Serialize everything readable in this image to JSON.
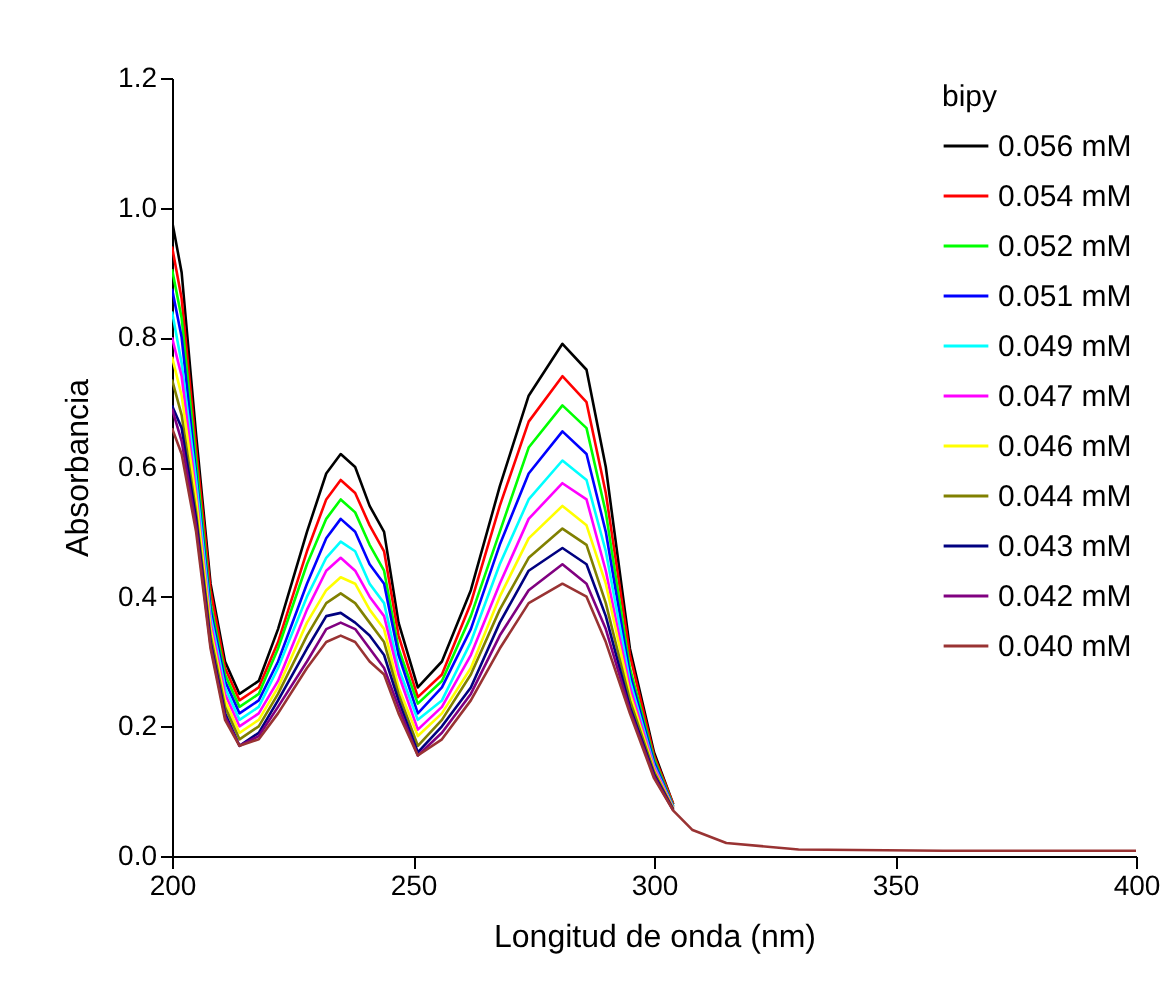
{
  "chart_data": {
    "type": "line",
    "xlabel": "Longitud de onda (nm)",
    "ylabel": "Absorbancia",
    "legend_title": "bipy",
    "legend": "top right",
    "grid": false,
    "marker": "none",
    "line_style": "solid",
    "xlim": [
      200,
      400
    ],
    "xticks": [
      200,
      250,
      300,
      350,
      400
    ],
    "ylim": [
      0,
      1.2
    ],
    "yticks": [
      {
        "value": 0,
        "label": "0.0"
      },
      {
        "value": 0.2,
        "label": "0.2"
      },
      {
        "value": 0.4,
        "label": "0.4"
      },
      {
        "value": 0.6,
        "label": "0.6"
      },
      {
        "value": 0.8,
        "label": "0.8"
      },
      {
        "value": 1,
        "label": "1.0"
      },
      {
        "value": 1.2,
        "label": "1.2"
      }
    ],
    "x": [
      200,
      202,
      205,
      208,
      211,
      214,
      218,
      222,
      228,
      232,
      235,
      238,
      241,
      244,
      247,
      251,
      256,
      262,
      268,
      274,
      281,
      286,
      290,
      295,
      300,
      304,
      308,
      315,
      330,
      360,
      400
    ],
    "series": [
      {
        "name": "0.056 mM",
        "color": "#000000",
        "values": [
          0.98,
          0.9,
          0.65,
          0.42,
          0.3,
          0.25,
          0.27,
          0.35,
          0.5,
          0.59,
          0.62,
          0.6,
          0.54,
          0.5,
          0.36,
          0.26,
          0.3,
          0.41,
          0.57,
          0.71,
          0.79,
          0.75,
          0.6,
          0.32,
          0.16,
          0.08,
          null,
          null,
          null,
          null,
          null
        ]
      },
      {
        "name": "0.054 mM",
        "color": "#ff0000",
        "values": [
          0.94,
          0.86,
          0.63,
          0.41,
          0.29,
          0.24,
          0.26,
          0.33,
          0.47,
          0.55,
          0.58,
          0.56,
          0.51,
          0.47,
          0.34,
          0.245,
          0.28,
          0.39,
          0.54,
          0.67,
          0.74,
          0.7,
          0.56,
          0.31,
          0.155,
          0.08,
          null,
          null,
          null,
          null,
          null
        ]
      },
      {
        "name": "0.052 mM",
        "color": "#00ff00",
        "values": [
          0.905,
          0.83,
          0.61,
          0.39,
          0.28,
          0.23,
          0.25,
          0.32,
          0.45,
          0.52,
          0.55,
          0.53,
          0.48,
          0.44,
          0.32,
          0.235,
          0.27,
          0.37,
          0.5,
          0.63,
          0.695,
          0.66,
          0.53,
          0.29,
          0.15,
          0.077,
          null,
          null,
          null,
          null,
          null
        ]
      },
      {
        "name": "0.051 mM",
        "color": "#0000ff",
        "values": [
          0.875,
          0.8,
          0.59,
          0.38,
          0.27,
          0.22,
          0.24,
          0.3,
          0.42,
          0.49,
          0.52,
          0.5,
          0.45,
          0.42,
          0.31,
          0.22,
          0.26,
          0.35,
          0.48,
          0.59,
          0.655,
          0.62,
          0.5,
          0.28,
          0.145,
          0.076,
          null,
          null,
          null,
          null,
          null
        ]
      },
      {
        "name": "0.049 mM",
        "color": "#00ffff",
        "values": [
          0.84,
          0.76,
          0.58,
          0.37,
          0.26,
          0.21,
          0.23,
          0.29,
          0.4,
          0.46,
          0.485,
          0.47,
          0.42,
          0.39,
          0.29,
          0.21,
          0.24,
          0.33,
          0.45,
          0.55,
          0.61,
          0.58,
          0.47,
          0.27,
          0.14,
          0.075,
          null,
          null,
          null,
          null,
          null
        ]
      },
      {
        "name": "0.047 mM",
        "color": "#ff00ff",
        "values": [
          0.8,
          0.74,
          0.56,
          0.36,
          0.25,
          0.2,
          0.22,
          0.27,
          0.38,
          0.44,
          0.46,
          0.44,
          0.4,
          0.37,
          0.28,
          0.195,
          0.23,
          0.31,
          0.42,
          0.52,
          0.575,
          0.55,
          0.44,
          0.26,
          0.137,
          0.074,
          null,
          null,
          null,
          null,
          null
        ]
      },
      {
        "name": "0.046 mM",
        "color": "#ffff00",
        "values": [
          0.77,
          0.71,
          0.55,
          0.35,
          0.24,
          0.19,
          0.21,
          0.26,
          0.36,
          0.41,
          0.43,
          0.42,
          0.38,
          0.35,
          0.26,
          0.185,
          0.22,
          0.29,
          0.4,
          0.49,
          0.54,
          0.51,
          0.42,
          0.25,
          0.133,
          0.073,
          null,
          null,
          null,
          null,
          null
        ]
      },
      {
        "name": "0.044 mM",
        "color": "#808000",
        "values": [
          0.735,
          0.68,
          0.53,
          0.34,
          0.23,
          0.18,
          0.2,
          0.25,
          0.34,
          0.39,
          0.405,
          0.39,
          0.36,
          0.33,
          0.25,
          0.17,
          0.21,
          0.28,
          0.38,
          0.46,
          0.505,
          0.48,
          0.39,
          0.24,
          0.13,
          0.072,
          null,
          null,
          null,
          null,
          null
        ]
      },
      {
        "name": "0.043 mM",
        "color": "#000080",
        "values": [
          0.695,
          0.66,
          0.52,
          0.33,
          0.22,
          0.17,
          0.19,
          0.24,
          0.32,
          0.37,
          0.375,
          0.36,
          0.34,
          0.31,
          0.24,
          0.16,
          0.2,
          0.26,
          0.36,
          0.44,
          0.475,
          0.45,
          0.37,
          0.23,
          0.126,
          0.071,
          null,
          null,
          null,
          null,
          null
        ]
      },
      {
        "name": "0.042 mM",
        "color": "#800080",
        "values": [
          0.69,
          0.64,
          0.51,
          0.325,
          0.215,
          0.17,
          0.185,
          0.23,
          0.3,
          0.35,
          0.36,
          0.35,
          0.32,
          0.29,
          0.23,
          0.155,
          0.19,
          0.25,
          0.34,
          0.41,
          0.45,
          0.42,
          0.35,
          0.225,
          0.123,
          0.07,
          null,
          null,
          null,
          null,
          null
        ]
      },
      {
        "name": "0.040 mM",
        "color": "#993333",
        "values": [
          0.66,
          0.62,
          0.5,
          0.32,
          0.21,
          0.17,
          0.18,
          0.22,
          0.29,
          0.33,
          0.34,
          0.33,
          0.3,
          0.28,
          0.22,
          0.155,
          0.18,
          0.24,
          0.32,
          0.39,
          0.42,
          0.4,
          0.33,
          0.22,
          0.12,
          0.07,
          0.04,
          0.02,
          0.01,
          0.008,
          0.008
        ]
      }
    ]
  }
}
